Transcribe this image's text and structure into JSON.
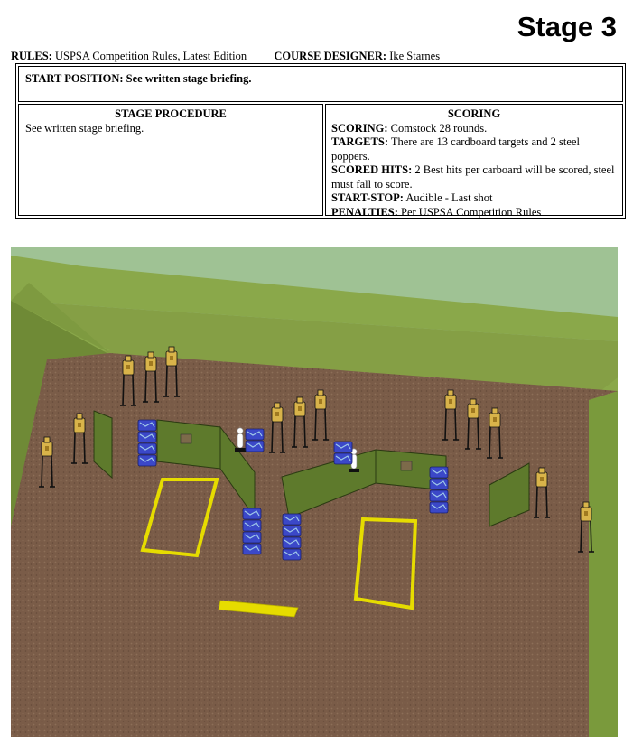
{
  "header": {
    "title": "Stage 3"
  },
  "meta": {
    "rules_label": "RULES:",
    "rules_value": "USPSA Competition Rules, Latest Edition",
    "designer_label": "COURSE DESIGNER:",
    "designer_value": "Ike Starnes"
  },
  "start_position": "START POSITION: See written stage briefing.",
  "procedure": {
    "heading": "STAGE PROCEDURE",
    "text": "See written stage briefing."
  },
  "scoring": {
    "heading": "SCORING",
    "rows": [
      {
        "label": "SCORING:",
        "value": "Comstock 28 rounds."
      },
      {
        "label": "TARGETS:",
        "value": "There are 13 cardboard targets and 2 steel poppers."
      },
      {
        "label": "SCORED HITS:",
        "value": "2 Best hits per carboard will be scored, steel must fall to score."
      },
      {
        "label": "START-STOP:",
        "value": "Audible - Last shot"
      },
      {
        "label": "PENALTIES:",
        "value": "Per USPSA Competition Rules"
      }
    ]
  },
  "colors": {
    "sky": "#9fc294",
    "berm": "#8aa84a",
    "berm_side": "#6f8a36",
    "ground": "#7a5c48",
    "wall": "#5e7a2c",
    "barrel": "#3b48c8",
    "fault_line": "#e6dc00",
    "target": "#d9b44a"
  }
}
